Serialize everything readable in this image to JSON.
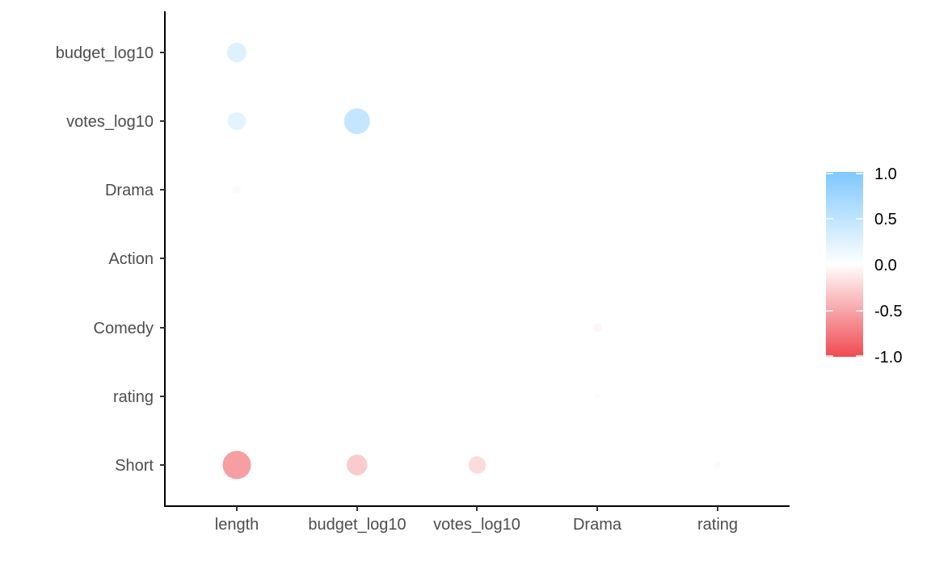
{
  "chart_data": {
    "type": "scatter",
    "subtype": "correlation-bubble-matrix",
    "title": "",
    "xlabel": "",
    "ylabel": "",
    "x_categories": [
      "length",
      "budget_log10",
      "votes_log10",
      "Drama",
      "rating"
    ],
    "y_categories": [
      "budget_log10",
      "votes_log10",
      "Drama",
      "Action",
      "Comedy",
      "rating",
      "Short"
    ],
    "points": [
      {
        "x": "length",
        "y": "budget_log10",
        "value": 0.26
      },
      {
        "x": "length",
        "y": "votes_log10",
        "value": 0.22
      },
      {
        "x": "length",
        "y": "Drama",
        "value": 0.05
      },
      {
        "x": "length",
        "y": "Short",
        "value": -0.54
      },
      {
        "x": "budget_log10",
        "y": "votes_log10",
        "value": 0.45
      },
      {
        "x": "budget_log10",
        "y": "Action",
        "value": 0.02
      },
      {
        "x": "budget_log10",
        "y": "Short",
        "value": -0.29
      },
      {
        "x": "votes_log10",
        "y": "Short",
        "value": -0.2
      },
      {
        "x": "Drama",
        "y": "Comedy",
        "value": -0.05
      },
      {
        "x": "Drama",
        "y": "rating",
        "value": -0.02
      },
      {
        "x": "rating",
        "y": "Short",
        "value": -0.03
      }
    ],
    "color_scale": {
      "min": -1.0,
      "max": 1.0,
      "low_color": "#ef4b52",
      "mid_color": "#ffffff",
      "high_color": "#7ec8ff",
      "ticks": [
        "1.0",
        "0.5",
        "0.0",
        "-0.5",
        "-1.0"
      ]
    },
    "legend": {
      "placement": "right"
    },
    "grid": false
  }
}
